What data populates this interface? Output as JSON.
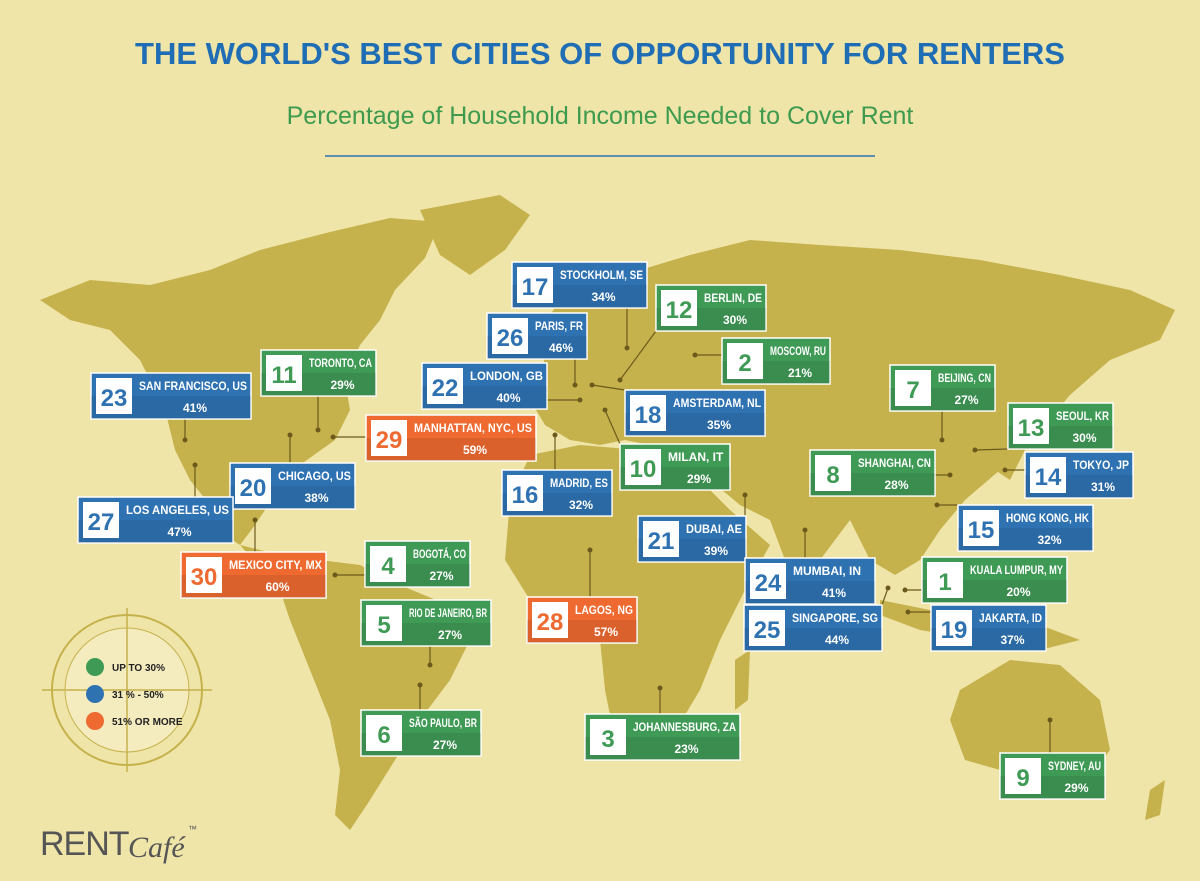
{
  "header": {
    "title": "THE WORLD'S BEST CITIES OF OPPORTUNITY FOR RENTERS",
    "subtitle": "Percentage of Household Income Needed to Cover Rent"
  },
  "legend": [
    {
      "label": "UP TO 30%",
      "color": "#3f9a55"
    },
    {
      "label": "31 % - 50%",
      "color": "#2f72b2"
    },
    {
      "label": "51% OR MORE",
      "color": "#ee6a30"
    }
  ],
  "cities": [
    {
      "rank": "17",
      "name": "STOCKHOLM, SE",
      "share": "34%",
      "color": "#2f72b2"
    },
    {
      "rank": "12",
      "name": "BERLIN, DE",
      "share": "30%",
      "color": "#3f9a55"
    },
    {
      "rank": "26",
      "name": "PARIS, FR",
      "share": "46%",
      "color": "#2f72b2"
    },
    {
      "rank": "2",
      "name": "MOSCOW, RU",
      "share": "21%",
      "color": "#3f9a55"
    },
    {
      "rank": "11",
      "name": "TORONTO, CA",
      "share": "29%",
      "color": "#3f9a55"
    },
    {
      "rank": "23",
      "name": "SAN FRANCISCO, US",
      "share": "41%",
      "color": "#2f72b2"
    },
    {
      "rank": "22",
      "name": "LONDON, GB",
      "share": "40%",
      "color": "#2f72b2"
    },
    {
      "rank": "29",
      "name": "MANHATTAN, NYC, US",
      "share": "59%",
      "color": "#ee6a30"
    },
    {
      "rank": "18",
      "name": "AMSTERDAM, NL",
      "share": "35%",
      "color": "#2f72b2"
    },
    {
      "rank": "7",
      "name": "BEIJING, CN",
      "share": "27%",
      "color": "#3f9a55"
    },
    {
      "rank": "13",
      "name": "SEOUL, KR",
      "share": "30%",
      "color": "#3f9a55"
    },
    {
      "rank": "10",
      "name": "MILAN, IT",
      "share": "29%",
      "color": "#3f9a55"
    },
    {
      "rank": "8",
      "name": "SHANGHAI, CN",
      "share": "28%",
      "color": "#3f9a55"
    },
    {
      "rank": "14",
      "name": "TOKYO, JP",
      "share": "31%",
      "color": "#2f72b2"
    },
    {
      "rank": "16",
      "name": "MADRID, ES",
      "share": "32%",
      "color": "#2f72b2"
    },
    {
      "rank": "20",
      "name": "CHICAGO, US",
      "share": "38%",
      "color": "#2f72b2"
    },
    {
      "rank": "27",
      "name": "LOS ANGELES, US",
      "share": "47%",
      "color": "#2f72b2"
    },
    {
      "rank": "21",
      "name": "DUBAI, AE",
      "share": "39%",
      "color": "#2f72b2"
    },
    {
      "rank": "15",
      "name": "HONG KONG, HK",
      "share": "32%",
      "color": "#2f72b2"
    },
    {
      "rank": "30",
      "name": "MEXICO CITY, MX",
      "share": "60%",
      "color": "#ee6a30"
    },
    {
      "rank": "4",
      "name": "BOGOTÁ, CO",
      "share": "27%",
      "color": "#3f9a55"
    },
    {
      "rank": "24",
      "name": "MUMBAI, IN",
      "share": "41%",
      "color": "#2f72b2"
    },
    {
      "rank": "1",
      "name": "KUALA LUMPUR, MY",
      "share": "20%",
      "color": "#3f9a55"
    },
    {
      "rank": "28",
      "name": "LAGOS, NG",
      "share": "57%",
      "color": "#ee6a30"
    },
    {
      "rank": "5",
      "name": "RIO DE JANEIRO, BR",
      "share": "27%",
      "color": "#3f9a55"
    },
    {
      "rank": "25",
      "name": "SINGAPORE, SG",
      "share": "44%",
      "color": "#2f72b2"
    },
    {
      "rank": "19",
      "name": "JAKARTA, ID",
      "share": "37%",
      "color": "#2f72b2"
    },
    {
      "rank": "6",
      "name": "SÃO PAULO, BR",
      "share": "27%",
      "color": "#3f9a55"
    },
    {
      "rank": "3",
      "name": "JOHANNESBURG, ZA",
      "share": "23%",
      "color": "#3f9a55"
    },
    {
      "rank": "9",
      "name": "SYDNEY, AU",
      "share": "29%",
      "color": "#3f9a55"
    }
  ],
  "logo": {
    "brand": "RENT",
    "script": "Café",
    "mark": "™"
  }
}
